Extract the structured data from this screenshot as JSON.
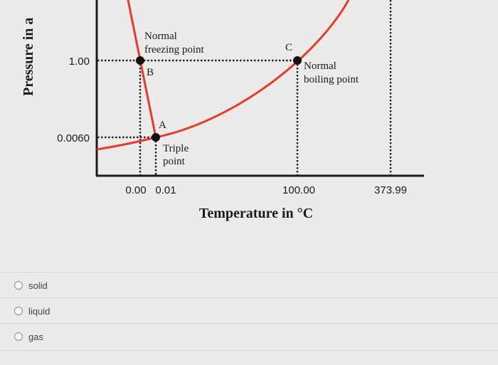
{
  "diagram": {
    "y_axis_label": "Pressure in a",
    "x_axis_label": "Temperature in °C",
    "y_ticks": [
      "1.00",
      "0.0060"
    ],
    "x_ticks": [
      "0.00",
      "0.01",
      "100.00",
      "373.99"
    ],
    "points": {
      "A": {
        "letter": "A",
        "caption": [
          "Triple",
          "point"
        ]
      },
      "B": {
        "letter": "B",
        "caption": [
          "Normal",
          "freezing point"
        ]
      },
      "C": {
        "letter": "C",
        "caption": [
          "Normal",
          "boiling point"
        ]
      }
    },
    "colors": {
      "curve": "#e53b2c",
      "axis": "#1a1a1a",
      "dots": "#111111"
    }
  },
  "question": {
    "options": [
      {
        "label": "solid"
      },
      {
        "label": "liquid"
      },
      {
        "label": "gas"
      }
    ]
  }
}
